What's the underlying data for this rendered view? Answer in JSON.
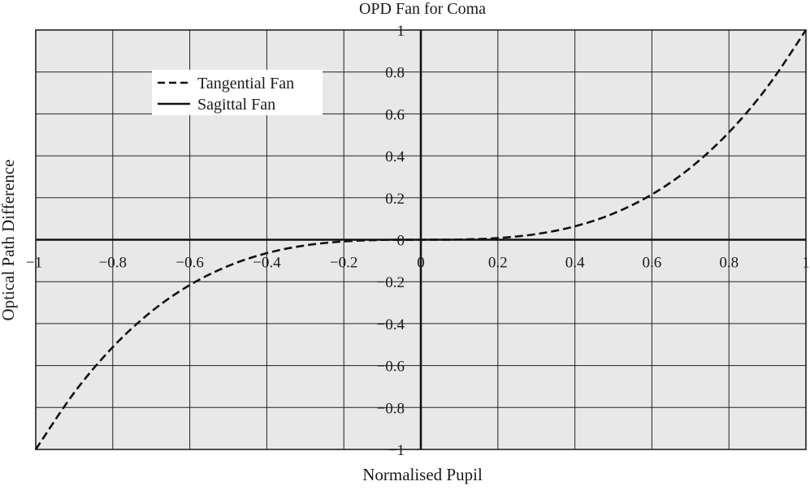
{
  "chart_data": {
    "type": "line",
    "title": "OPD Fan for Coma",
    "xlabel": "Normalised Pupil",
    "ylabel": "Optical Path Difference",
    "xlim": [
      -1,
      1
    ],
    "ylim": [
      -1,
      1
    ],
    "grid": true,
    "x_ticks": [
      -1,
      -0.8,
      -0.6,
      -0.4,
      -0.2,
      0,
      0.2,
      0.4,
      0.6,
      0.8,
      1
    ],
    "y_ticks": [
      -1,
      -0.8,
      -0.6,
      -0.4,
      -0.2,
      0,
      0.2,
      0.4,
      0.6,
      0.8,
      1
    ],
    "x_tick_labels": [
      "−1",
      "−0.8",
      "−0.6",
      "−0.4",
      "−0.2",
      "0",
      "0.2",
      "0.4",
      "0.6",
      "0.8",
      "1"
    ],
    "y_tick_labels": [
      "−1",
      "−0.8",
      "−0.6",
      "−0.4",
      "−0.2",
      "0",
      "0.2",
      "0.4",
      "0.6",
      "0.8",
      "1"
    ],
    "legend_position": "top-left",
    "series": [
      {
        "name": "Tangential Fan",
        "style": "dashed",
        "color": "#111111",
        "x": [
          -1,
          -0.9,
          -0.8,
          -0.7,
          -0.6,
          -0.5,
          -0.4,
          -0.3,
          -0.2,
          -0.1,
          0,
          0.1,
          0.2,
          0.3,
          0.4,
          0.5,
          0.6,
          0.7,
          0.8,
          0.9,
          1
        ],
        "y": [
          -1,
          -0.729,
          -0.512,
          -0.343,
          -0.216,
          -0.125,
          -0.064,
          -0.027,
          -0.008,
          -0.001,
          0,
          0.001,
          0.008,
          0.027,
          0.064,
          0.125,
          0.216,
          0.343,
          0.512,
          0.729,
          1
        ]
      },
      {
        "name": "Sagittal Fan",
        "style": "solid",
        "color": "#111111",
        "x": [
          -1,
          1
        ],
        "y": [
          0,
          0
        ]
      }
    ]
  }
}
